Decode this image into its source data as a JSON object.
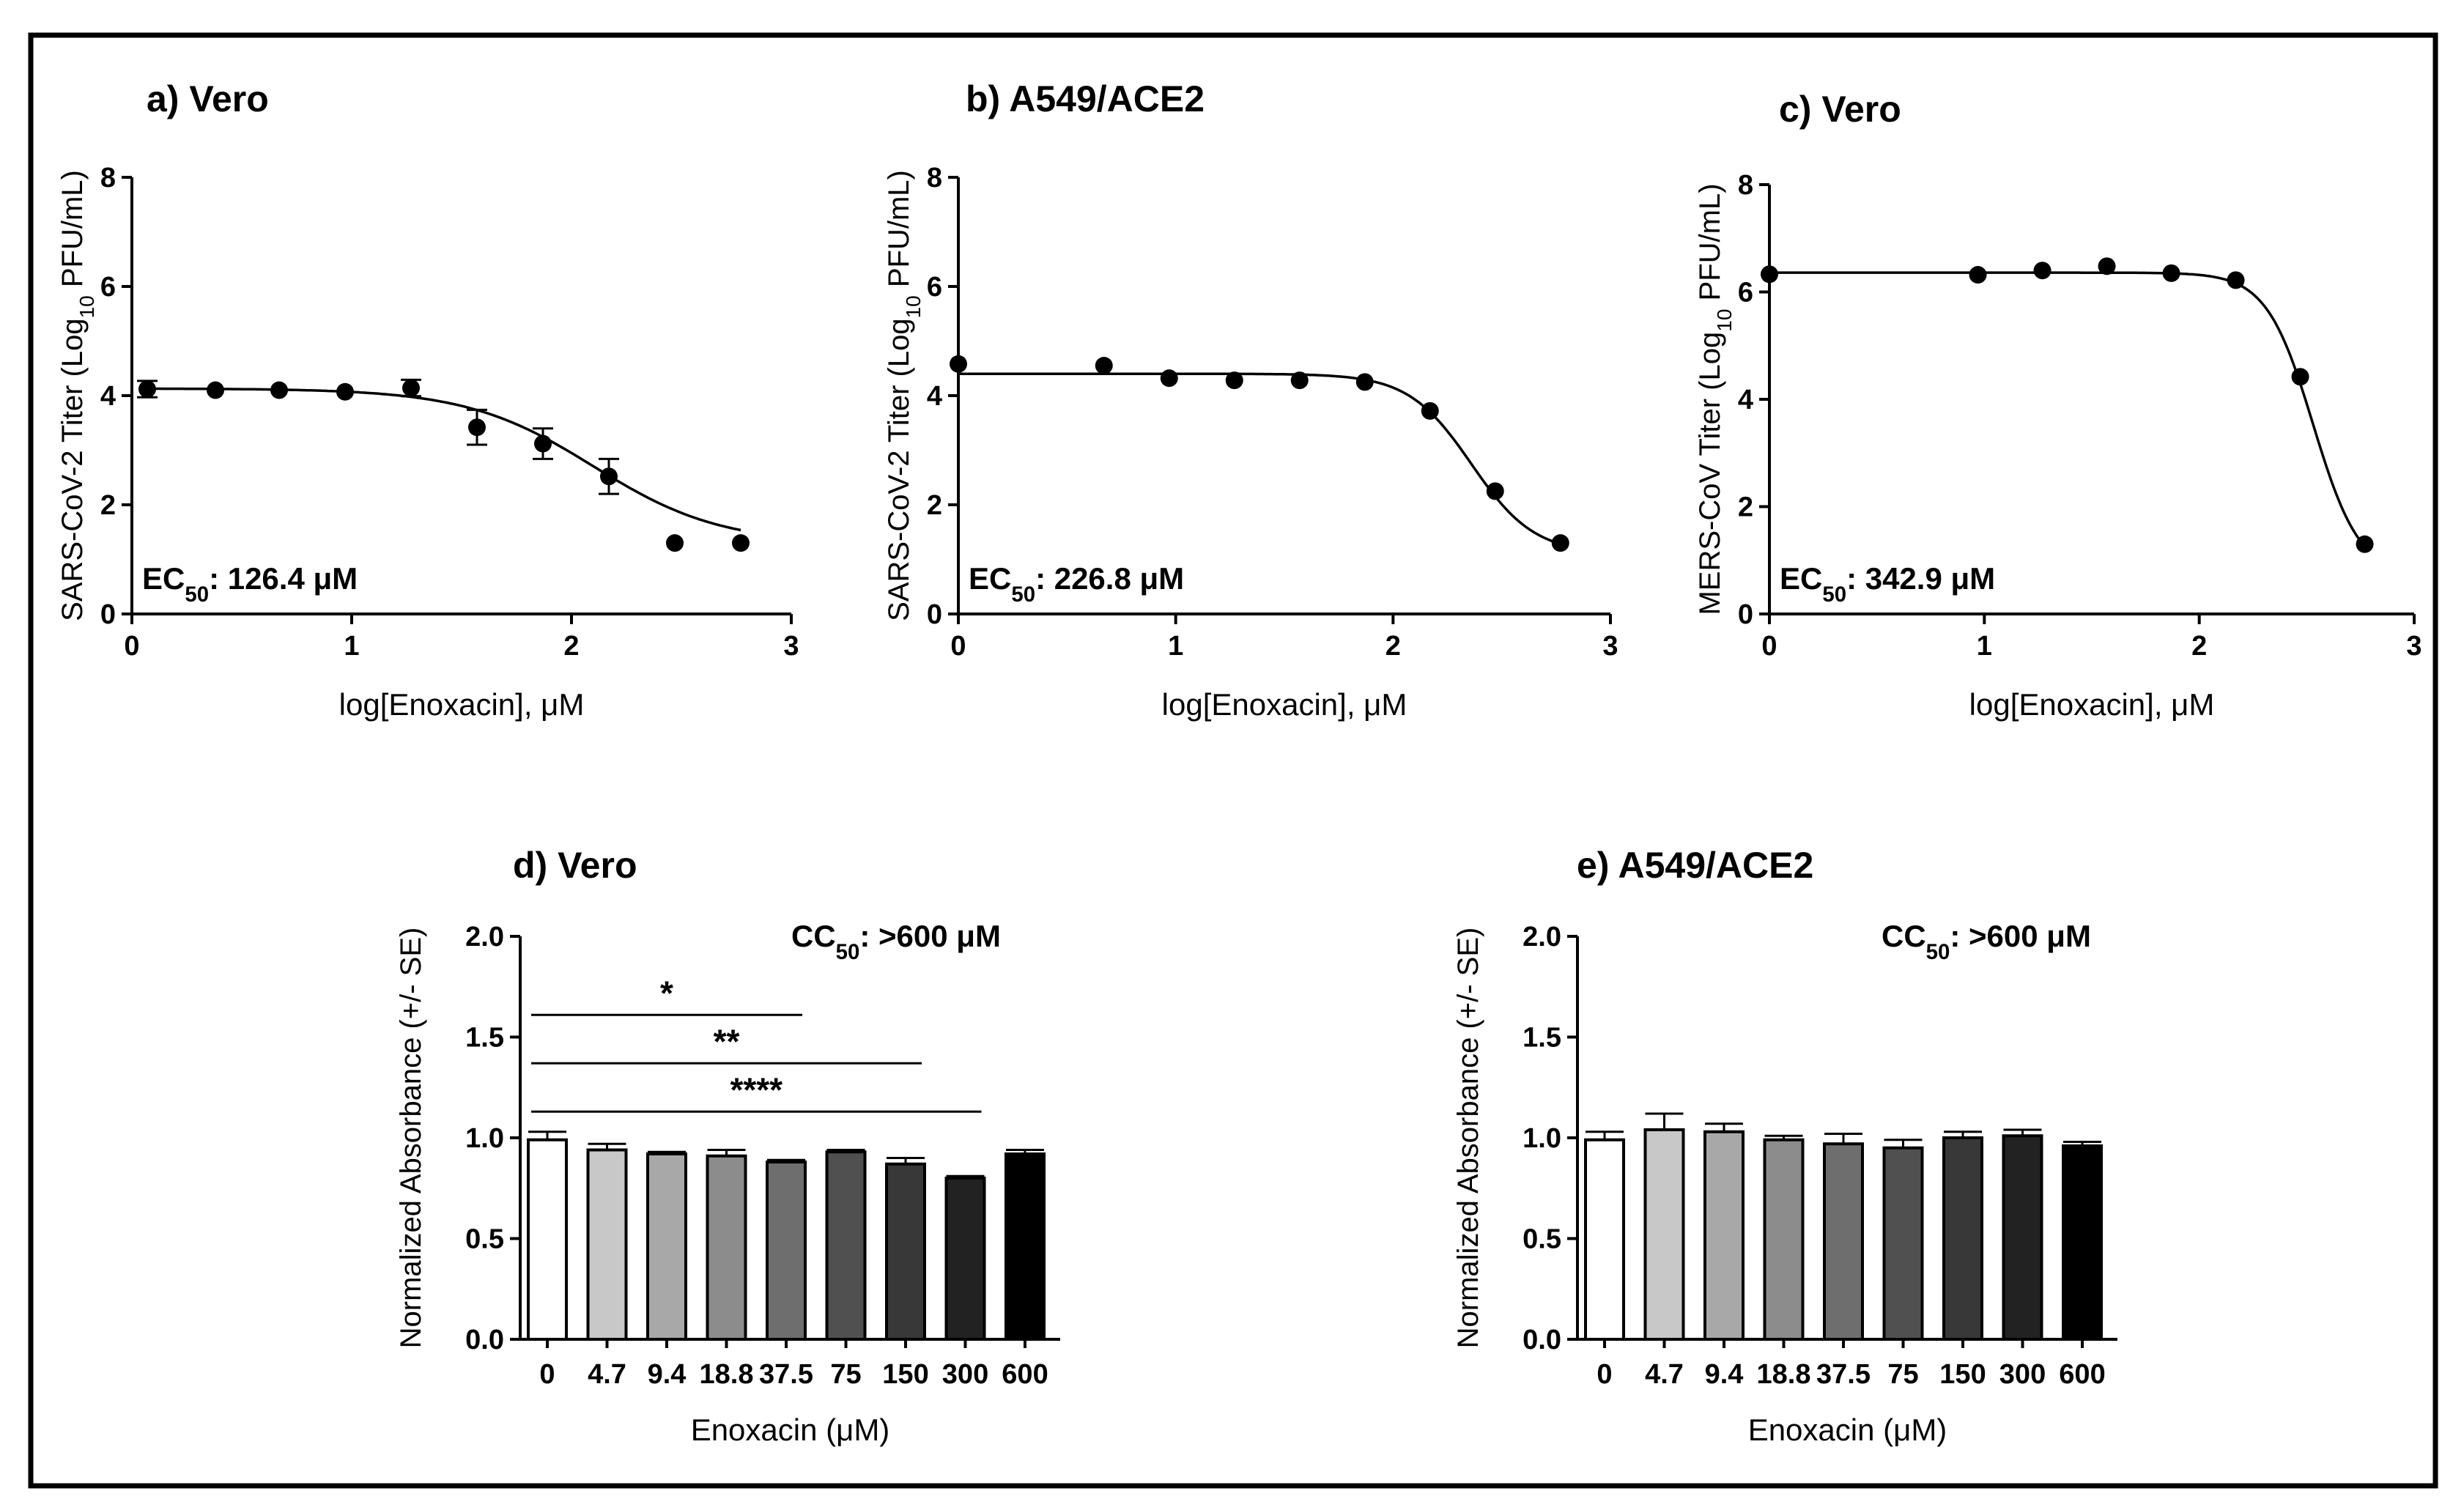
{
  "chart_data": [
    {
      "id": "a",
      "type": "scatter",
      "title": "a) Vero",
      "ylabel_parts": [
        "SARS-CoV-2 Titer (Log",
        "10",
        " PFU/mL)"
      ],
      "xlabel": "log[Enoxacin], μM",
      "annotation_parts": [
        "EC",
        "50",
        ": 126.4 μM"
      ],
      "xlim": [
        0,
        3
      ],
      "ylim": [
        0,
        8
      ],
      "xticks": [
        "0",
        "1",
        "2",
        "3"
      ],
      "yticks": [
        "0",
        "2",
        "4",
        "6",
        "8"
      ],
      "points": [
        {
          "x": 0.07,
          "y": 4.12,
          "err": 0.15
        },
        {
          "x": 0.38,
          "y": 4.1,
          "err": 0
        },
        {
          "x": 0.67,
          "y": 4.1,
          "err": 0
        },
        {
          "x": 0.97,
          "y": 4.07,
          "err": 0
        },
        {
          "x": 1.27,
          "y": 4.14,
          "err": 0.15
        },
        {
          "x": 1.57,
          "y": 3.42,
          "err": 0.32
        },
        {
          "x": 1.87,
          "y": 3.12,
          "err": 0.28
        },
        {
          "x": 2.17,
          "y": 2.52,
          "err": 0.32
        },
        {
          "x": 2.47,
          "y": 1.3,
          "err": 0
        },
        {
          "x": 2.77,
          "y": 1.3,
          "err": 0
        }
      ],
      "fit": {
        "top": 4.13,
        "bottom": 1.28,
        "logEC50": 2.1,
        "hill": 1.5
      }
    },
    {
      "id": "b",
      "type": "scatter",
      "title": "b) A549/ACE2",
      "ylabel_parts": [
        "SARS-CoV-2 Titer (Log",
        "10",
        " PFU/mL)"
      ],
      "xlabel": "log[Enoxacin], μM",
      "annotation_parts": [
        "EC",
        "50",
        ": 226.8 μM"
      ],
      "xlim": [
        0,
        3
      ],
      "ylim": [
        0,
        8
      ],
      "xticks": [
        "0",
        "1",
        "2",
        "3"
      ],
      "yticks": [
        "0",
        "2",
        "4",
        "6",
        "8"
      ],
      "points": [
        {
          "x": 0.0,
          "y": 4.58,
          "err": 0
        },
        {
          "x": 0.67,
          "y": 4.55,
          "err": 0
        },
        {
          "x": 0.97,
          "y": 4.32,
          "err": 0
        },
        {
          "x": 1.27,
          "y": 4.28,
          "err": 0
        },
        {
          "x": 1.57,
          "y": 4.28,
          "err": 0
        },
        {
          "x": 1.87,
          "y": 4.25,
          "err": 0
        },
        {
          "x": 2.17,
          "y": 3.72,
          "err": 0
        },
        {
          "x": 2.47,
          "y": 2.25,
          "err": 0
        },
        {
          "x": 2.77,
          "y": 1.3,
          "err": 0
        }
      ],
      "fit": {
        "top": 4.4,
        "bottom": 1.1,
        "logEC50": 2.36,
        "hill": 3.0
      }
    },
    {
      "id": "c",
      "type": "scatter",
      "title": "c) Vero",
      "ylabel_parts": [
        "MERS-CoV Titer (Log",
        "10",
        " PFU/mL)"
      ],
      "xlabel": "log[Enoxacin], μM",
      "annotation_parts": [
        "EC",
        "50",
        ": 342.9 μM"
      ],
      "xlim": [
        0,
        3
      ],
      "ylim": [
        0,
        8
      ],
      "xticks": [
        "0",
        "1",
        "2",
        "3"
      ],
      "yticks": [
        "0",
        "2",
        "4",
        "6",
        "8"
      ],
      "points": [
        {
          "x": 0.0,
          "y": 6.33,
          "err": 0
        },
        {
          "x": 0.97,
          "y": 6.32,
          "err": 0
        },
        {
          "x": 1.27,
          "y": 6.4,
          "err": 0
        },
        {
          "x": 1.57,
          "y": 6.48,
          "err": 0
        },
        {
          "x": 1.87,
          "y": 6.35,
          "err": 0
        },
        {
          "x": 2.17,
          "y": 6.22,
          "err": 0
        },
        {
          "x": 2.47,
          "y": 4.42,
          "err": 0
        },
        {
          "x": 2.77,
          "y": 1.3,
          "err": 0
        }
      ],
      "fit": {
        "top": 6.36,
        "bottom": 0.7,
        "logEC50": 2.53,
        "hill": 4.0
      }
    },
    {
      "id": "d",
      "type": "bar",
      "title": "d) Vero",
      "ylabel": "Normalized Absorbance (+/- SE)",
      "xlabel": "Enoxacin (μM)",
      "annotation_parts": [
        "CC",
        "50",
        ": >600 μM"
      ],
      "ylim": [
        0,
        2.0
      ],
      "yticks": [
        "0.0",
        "0.5",
        "1.0",
        "1.5",
        "2.0"
      ],
      "categories": [
        "0",
        "4.7",
        "9.4",
        "18.8",
        "37.5",
        "75",
        "150",
        "300",
        "600"
      ],
      "values": [
        0.99,
        0.94,
        0.92,
        0.91,
        0.88,
        0.93,
        0.87,
        0.8,
        0.92
      ],
      "errors": [
        0.04,
        0.03,
        0.01,
        0.03,
        0.01,
        0.01,
        0.03,
        0.01,
        0.02
      ],
      "colors": [
        "#ffffff",
        "#c8c8c8",
        "#a8a8a8",
        "#8c8c8c",
        "#6e6e6e",
        "#505050",
        "#383838",
        "#222222",
        "#000000"
      ],
      "significance": [
        {
          "label": "*",
          "from": 0,
          "to": 4,
          "y": 1.61
        },
        {
          "label": "**",
          "from": 0,
          "to": 6,
          "y": 1.37
        },
        {
          "label": "****",
          "from": 0,
          "to": 7,
          "y": 1.13
        }
      ]
    },
    {
      "id": "e",
      "type": "bar",
      "title": "e) A549/ACE2",
      "ylabel": "Normalized Absorbance (+/- SE)",
      "xlabel": "Enoxacin (μM)",
      "annotation_parts": [
        "CC",
        "50",
        ": >600 μM"
      ],
      "ylim": [
        0,
        2.0
      ],
      "yticks": [
        "0.0",
        "0.5",
        "1.0",
        "1.5",
        "2.0"
      ],
      "categories": [
        "0",
        "4.7",
        "9.4",
        "18.8",
        "37.5",
        "75",
        "150",
        "300",
        "600"
      ],
      "values": [
        0.99,
        1.04,
        1.03,
        0.99,
        0.97,
        0.95,
        1.0,
        1.01,
        0.96
      ],
      "errors": [
        0.04,
        0.08,
        0.04,
        0.02,
        0.05,
        0.04,
        0.03,
        0.03,
        0.02
      ],
      "colors": [
        "#ffffff",
        "#c8c8c8",
        "#a8a8a8",
        "#8c8c8c",
        "#6e6e6e",
        "#505050",
        "#383838",
        "#222222",
        "#000000"
      ],
      "significance": []
    }
  ]
}
